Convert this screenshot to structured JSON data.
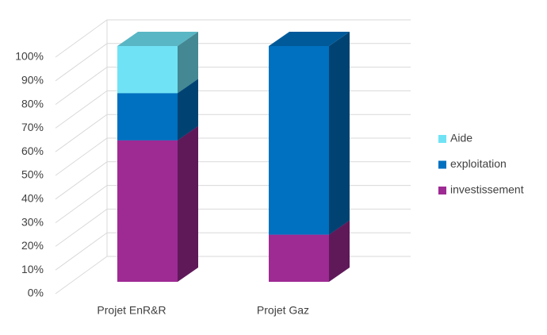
{
  "chart_data": {
    "type": "bar3d_stacked",
    "categories": [
      "Projet EnR&R",
      "Projet Gaz"
    ],
    "series": [
      {
        "name": "investissement",
        "color": "#9e2a94",
        "values": [
          60,
          20
        ]
      },
      {
        "name": "exploitation",
        "color": "#0070c0",
        "values": [
          20,
          80
        ]
      },
      {
        "name": "Aide",
        "color": "#6fe3f5",
        "values": [
          20,
          0
        ]
      }
    ],
    "ylim": [
      0,
      100
    ],
    "yticks": [
      {
        "value": 0,
        "label": "0%"
      },
      {
        "value": 10,
        "label": "10%"
      },
      {
        "value": 20,
        "label": "20%"
      },
      {
        "value": 30,
        "label": "30%"
      },
      {
        "value": 40,
        "label": "40%"
      },
      {
        "value": 50,
        "label": "50%"
      },
      {
        "value": 60,
        "label": "60%"
      },
      {
        "value": 70,
        "label": "70%"
      },
      {
        "value": 80,
        "label": "80%"
      },
      {
        "value": 90,
        "label": "90%"
      },
      {
        "value": 100,
        "label": "100%"
      }
    ],
    "grid": true,
    "legend": "right"
  }
}
